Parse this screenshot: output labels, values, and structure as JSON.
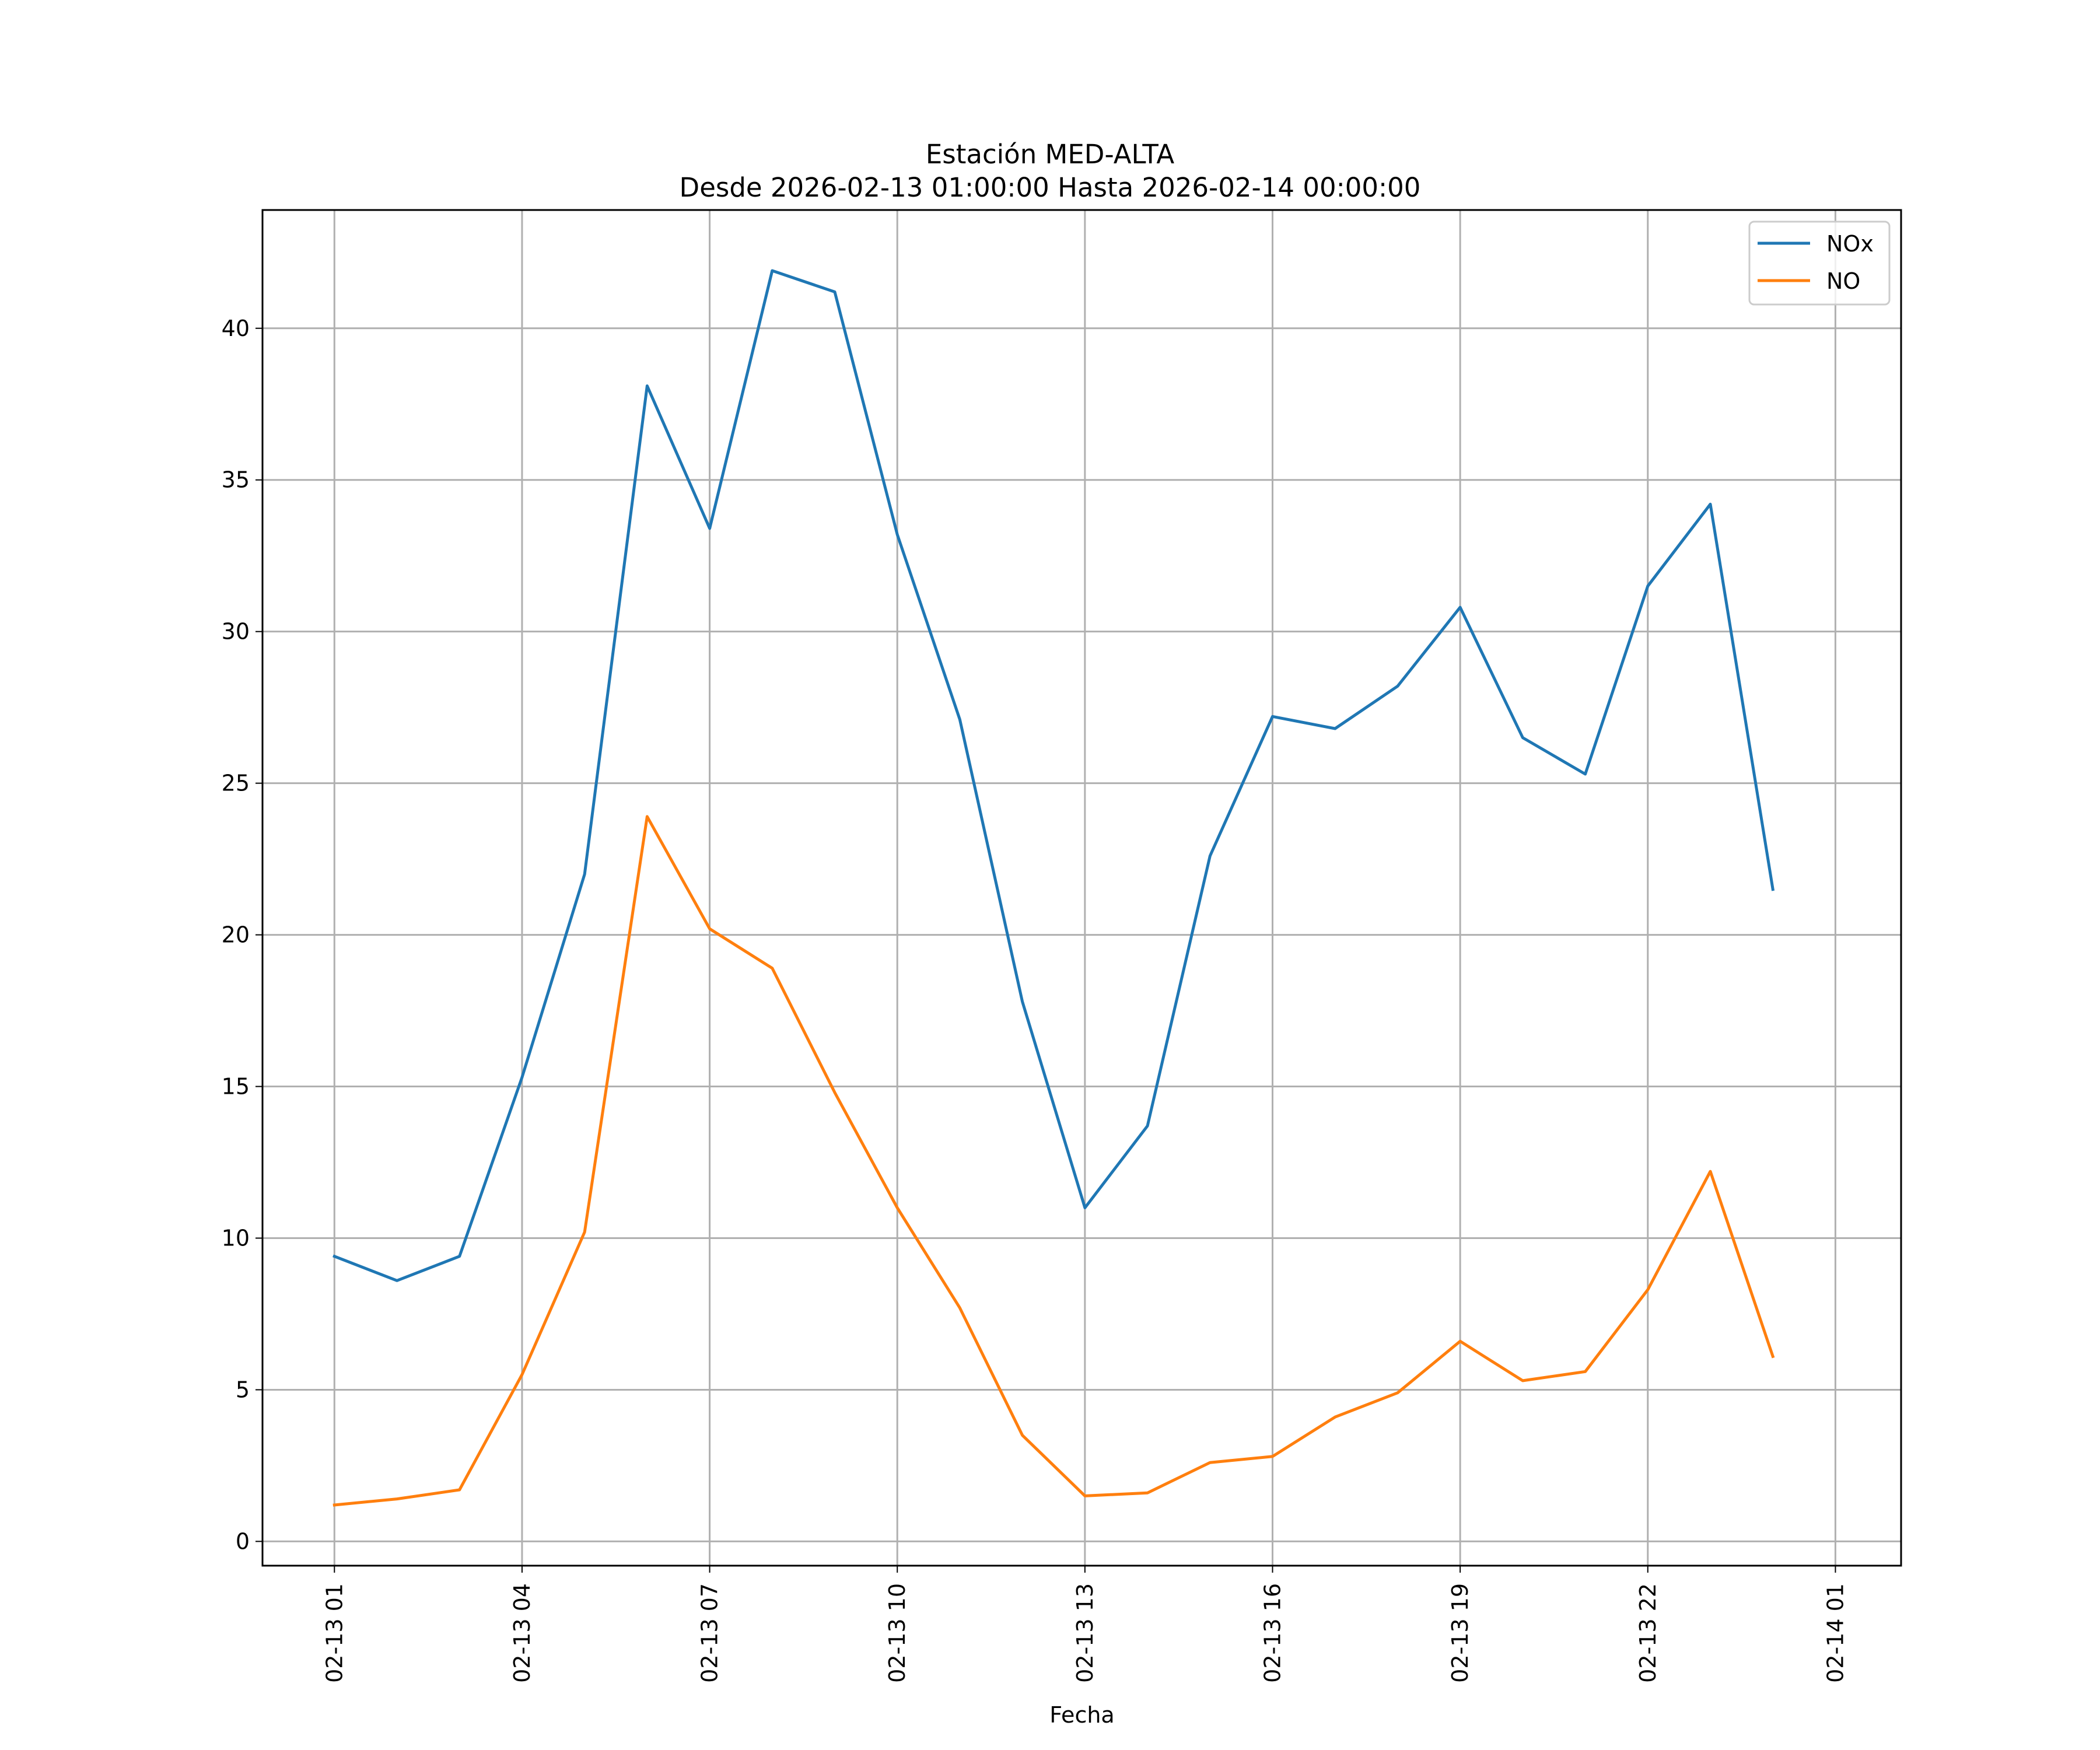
{
  "chart_data": {
    "type": "line",
    "title": "Estación MED-ALTA",
    "subtitle": "Desde 2026-02-13 01:00:00 Hasta 2026-02-14 00:00:00",
    "xlabel": "Fecha",
    "ylabel": "",
    "grid": true,
    "legend_position": "top-right",
    "ylim": [
      -0.8,
      43.9
    ],
    "xlim_hours": [
      -1.15,
      25.05
    ],
    "yticks": [
      0,
      5,
      10,
      15,
      20,
      25,
      30,
      35,
      40
    ],
    "xticks": [
      {
        "hour": 0,
        "label": "02-13 01"
      },
      {
        "hour": 3,
        "label": "02-13 04"
      },
      {
        "hour": 6,
        "label": "02-13 07"
      },
      {
        "hour": 9,
        "label": "02-13 10"
      },
      {
        "hour": 12,
        "label": "02-13 13"
      },
      {
        "hour": 15,
        "label": "02-13 16"
      },
      {
        "hour": 18,
        "label": "02-13 19"
      },
      {
        "hour": 21,
        "label": "02-13 22"
      },
      {
        "hour": 24,
        "label": "02-14 01"
      }
    ],
    "x": [
      "2026-02-13 01:00",
      "2026-02-13 02:00",
      "2026-02-13 03:00",
      "2026-02-13 04:00",
      "2026-02-13 05:00",
      "2026-02-13 06:00",
      "2026-02-13 07:00",
      "2026-02-13 08:00",
      "2026-02-13 09:00",
      "2026-02-13 10:00",
      "2026-02-13 11:00",
      "2026-02-13 12:00",
      "2026-02-13 13:00",
      "2026-02-13 14:00",
      "2026-02-13 15:00",
      "2026-02-13 16:00",
      "2026-02-13 17:00",
      "2026-02-13 18:00",
      "2026-02-13 19:00",
      "2026-02-13 20:00",
      "2026-02-13 21:00",
      "2026-02-13 22:00",
      "2026-02-13 23:00",
      "2026-02-14 00:00"
    ],
    "series": [
      {
        "name": "NOx",
        "color": "#1f77b4",
        "values": [
          9.4,
          8.6,
          9.4,
          15.3,
          22.0,
          38.1,
          33.4,
          41.9,
          41.2,
          33.2,
          27.1,
          17.8,
          11.0,
          13.7,
          22.6,
          27.2,
          26.8,
          28.2,
          30.8,
          26.5,
          25.3,
          31.5,
          34.2,
          21.5
        ]
      },
      {
        "name": "NO",
        "color": "#ff7f0e",
        "values": [
          1.2,
          1.4,
          1.7,
          5.5,
          10.2,
          23.9,
          20.2,
          18.9,
          14.8,
          11.0,
          7.7,
          3.5,
          1.5,
          1.6,
          2.6,
          2.8,
          4.1,
          4.9,
          6.6,
          5.3,
          5.6,
          8.3,
          12.2,
          6.1
        ]
      }
    ]
  }
}
